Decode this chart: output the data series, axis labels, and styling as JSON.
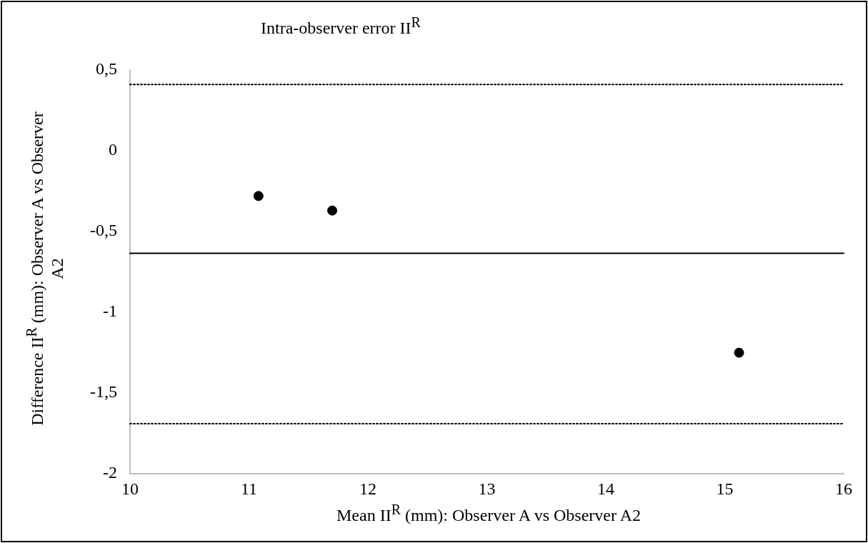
{
  "chart_data": {
    "type": "scatter",
    "title": "Intra-observer error II$^{R}$",
    "xlabel": "Mean II$^{R}$ (mm): Observer A vs Observer A2",
    "ylabel": "Difference II$^{R}$ (mm): Observer A vs Observer A2",
    "x": [
      11.08,
      11.7,
      15.12
    ],
    "series": [
      {
        "color": "#000000",
        "values": [
          -0.28,
          -0.37,
          -1.25
        ]
      }
    ],
    "xlim": [
      10,
      16
    ],
    "xticks": [
      10,
      11,
      12,
      13,
      14,
      15,
      16
    ],
    "ylim": [
      -2,
      0.5
    ],
    "yticks": [
      {
        "value": -2,
        "label": "-2"
      },
      {
        "value": -1.5,
        "label": "-1,5"
      },
      {
        "value": -1,
        "label": "-1"
      },
      {
        "value": -0.5,
        "label": "-0,5"
      },
      {
        "value": 0,
        "label": "0"
      },
      {
        "value": 0.5,
        "label": "0,5"
      }
    ],
    "ref_lines": [
      {
        "axis": "y",
        "value": 0.41,
        "color": "#000000",
        "line_style": "dotted"
      },
      {
        "axis": "y",
        "value": -0.635,
        "color": "#000000",
        "line_style": "solid"
      },
      {
        "axis": "y",
        "value": -1.69,
        "color": "#000000",
        "line_style": "dotted"
      }
    ],
    "grid": false,
    "legend": false,
    "marker": "circle"
  }
}
